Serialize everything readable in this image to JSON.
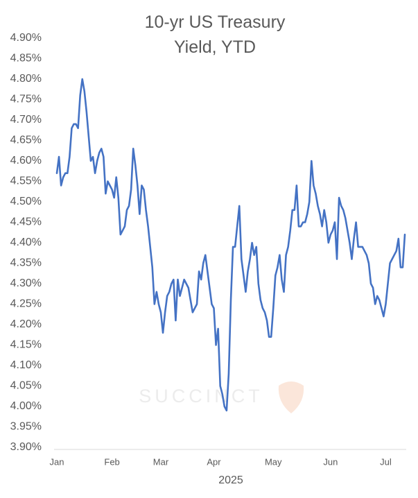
{
  "chart_data": {
    "type": "line",
    "title": "10-yr US Treasury Yield, YTD",
    "x_label": "2025",
    "watermark": "SUCCINCT",
    "color": "#4472c4",
    "grid": false,
    "ylim": [
      3.9,
      4.9
    ],
    "yticks": [
      {
        "value": 3.9,
        "label": "3.90%"
      },
      {
        "value": 3.95,
        "label": "3.95%"
      },
      {
        "value": 4.0,
        "label": "4.00%"
      },
      {
        "value": 4.05,
        "label": "4.05%"
      },
      {
        "value": 4.1,
        "label": "4.10%"
      },
      {
        "value": 4.15,
        "label": "4.15%"
      },
      {
        "value": 4.2,
        "label": "4.20%"
      },
      {
        "value": 4.25,
        "label": "4.25%"
      },
      {
        "value": 4.3,
        "label": "4.30%"
      },
      {
        "value": 4.35,
        "label": "4.35%"
      },
      {
        "value": 4.4,
        "label": "4.40%"
      },
      {
        "value": 4.45,
        "label": "4.45%"
      },
      {
        "value": 4.5,
        "label": "4.50%"
      },
      {
        "value": 4.55,
        "label": "4.55%"
      },
      {
        "value": 4.6,
        "label": "4.60%"
      },
      {
        "value": 4.65,
        "label": "4.65%"
      },
      {
        "value": 4.7,
        "label": "4.70%"
      },
      {
        "value": 4.75,
        "label": "4.75%"
      },
      {
        "value": 4.8,
        "label": "4.80%"
      },
      {
        "value": 4.85,
        "label": "4.85%"
      },
      {
        "value": 4.9,
        "label": "4.90%"
      }
    ],
    "categories": [
      "Jan",
      null,
      null,
      null,
      null,
      null,
      null,
      null,
      null,
      null,
      null,
      null,
      null,
      null,
      null,
      null,
      null,
      null,
      null,
      null,
      null,
      null,
      null,
      null,
      null,
      null,
      "Feb",
      null,
      null,
      null,
      null,
      null,
      null,
      null,
      null,
      null,
      null,
      null,
      null,
      null,
      null,
      null,
      null,
      null,
      null,
      null,
      null,
      null,
      null,
      "Mar",
      null,
      null,
      null,
      null,
      null,
      null,
      null,
      null,
      null,
      null,
      null,
      null,
      null,
      null,
      null,
      null,
      null,
      null,
      null,
      null,
      null,
      null,
      null,
      null,
      "Apr",
      null,
      null,
      null,
      null,
      null,
      null,
      null,
      null,
      null,
      null,
      null,
      null,
      null,
      null,
      null,
      null,
      null,
      null,
      null,
      null,
      null,
      null,
      null,
      null,
      null,
      null,
      null,
      "May",
      null,
      null,
      null,
      null,
      null,
      null,
      null,
      null,
      null,
      null,
      null,
      null,
      null,
      null,
      null,
      null,
      null,
      null,
      null,
      null,
      null,
      null,
      null,
      null,
      null,
      null,
      "Jun",
      null,
      null,
      null,
      null,
      null,
      null,
      null,
      null,
      null,
      null,
      null,
      null,
      null,
      null,
      null,
      null,
      null,
      null,
      null,
      null,
      null,
      null,
      null,
      null,
      null,
      "Jul",
      null,
      null,
      null,
      null,
      null,
      null,
      null,
      null,
      null
    ],
    "values": [
      4.57,
      4.61,
      4.54,
      4.56,
      4.57,
      4.57,
      4.61,
      4.68,
      4.69,
      4.69,
      4.68,
      4.76,
      4.8,
      4.77,
      4.72,
      4.66,
      4.6,
      4.61,
      4.57,
      4.6,
      4.62,
      4.63,
      4.61,
      4.52,
      4.55,
      4.54,
      4.53,
      4.51,
      4.56,
      4.51,
      4.42,
      4.43,
      4.44,
      4.48,
      4.49,
      4.53,
      4.63,
      4.59,
      4.54,
      4.47,
      4.54,
      4.53,
      4.48,
      4.44,
      4.39,
      4.34,
      4.25,
      4.28,
      4.25,
      4.23,
      4.18,
      4.23,
      4.27,
      4.28,
      4.3,
      4.31,
      4.21,
      4.31,
      4.27,
      4.29,
      4.31,
      4.3,
      4.29,
      4.26,
      4.23,
      4.24,
      4.25,
      4.33,
      4.31,
      4.35,
      4.37,
      4.33,
      4.29,
      4.25,
      4.24,
      4.15,
      4.19,
      4.05,
      4.03,
      4.0,
      3.99,
      4.08,
      4.26,
      4.39,
      4.39,
      4.44,
      4.49,
      4.36,
      4.32,
      4.28,
      4.33,
      4.36,
      4.4,
      4.37,
      4.39,
      4.3,
      4.26,
      4.24,
      4.23,
      4.21,
      4.17,
      4.17,
      4.24,
      4.32,
      4.34,
      4.37,
      4.31,
      4.28,
      4.37,
      4.39,
      4.43,
      4.48,
      4.48,
      4.54,
      4.44,
      4.44,
      4.45,
      4.45,
      4.47,
      4.5,
      4.6,
      4.54,
      4.52,
      4.49,
      4.47,
      4.44,
      4.48,
      4.45,
      4.4,
      4.42,
      4.43,
      4.45,
      4.36,
      4.51,
      4.49,
      4.48,
      4.46,
      4.43,
      4.4,
      4.36,
      4.41,
      4.45,
      4.39,
      4.39,
      4.39,
      4.38,
      4.37,
      4.35,
      4.3,
      4.29,
      4.25,
      4.27,
      4.26,
      4.24,
      4.22,
      4.25,
      4.3,
      4.35,
      4.36,
      4.37,
      4.38,
      4.41,
      4.34,
      4.34,
      4.42
    ]
  }
}
